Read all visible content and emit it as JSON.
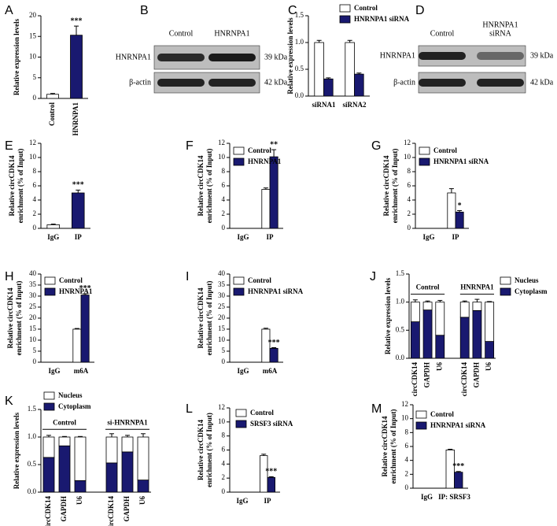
{
  "chart_data": [
    {
      "type": "bar",
      "label": "A",
      "ylabel": [
        "Relative expression levels"
      ],
      "categories": [
        "Control",
        "HNRNPA1"
      ],
      "values": [
        1,
        15.3
      ],
      "errors": [
        0.2,
        2.2
      ],
      "colors": [
        "#ffffff",
        "#191970"
      ],
      "significance": [
        null,
        "***"
      ],
      "ylim": [
        0,
        20
      ],
      "yticks": [
        0,
        5,
        10,
        15,
        20
      ]
    },
    {
      "type": "bar",
      "label": "C",
      "ylabel": [
        "Relative expression levels"
      ],
      "categories": [
        "siRNA1",
        "siRNA2"
      ],
      "series": [
        {
          "name": "Control",
          "color": "#ffffff",
          "values": [
            1.0,
            1.0
          ],
          "errors": [
            0.04,
            0.04
          ]
        },
        {
          "name": "HNRNPA1 siRNA",
          "color": "#191970",
          "values": [
            0.32,
            0.41
          ],
          "errors": [
            0.02,
            0.02
          ]
        }
      ],
      "ylim": [
        0,
        1.5
      ],
      "yticks": [
        {
          "value": 0,
          "label": "0.0"
        },
        {
          "value": 0.5,
          "label": "0.5"
        },
        {
          "value": 1,
          "label": "1.0"
        },
        {
          "value": 1.5,
          "label": "1.5"
        }
      ]
    },
    {
      "type": "bar",
      "label": "E",
      "ylabel": [
        "Relative  circCDK14",
        "enrichment (% of Input)"
      ],
      "categories": [
        "IgG",
        "IP"
      ],
      "values": [
        0.5,
        5.0
      ],
      "errors": [
        0.1,
        0.4
      ],
      "colors": [
        "#ffffff",
        "#191970"
      ],
      "significance": [
        null,
        "***"
      ],
      "ylim": [
        0,
        12
      ],
      "yticks": [
        0,
        2,
        4,
        6,
        8,
        10,
        12
      ]
    },
    {
      "type": "bar",
      "label": "F",
      "ylabel": [
        "Relative  circCDK14",
        "enrichment (% of Input)"
      ],
      "categories": [
        "IgG",
        "IP"
      ],
      "series": [
        {
          "name": "Control",
          "color": "#ffffff",
          "values": [
            0,
            5.5
          ],
          "errors": [
            0,
            0.2
          ]
        },
        {
          "name": "HNRNPA1",
          "color": "#191970",
          "values": [
            0,
            10.1
          ],
          "errors": [
            0,
            1.0
          ]
        }
      ],
      "significance": [
        null,
        "**"
      ],
      "ylim": [
        0,
        12
      ],
      "yticks": [
        0,
        2,
        4,
        6,
        8,
        10,
        12
      ]
    },
    {
      "type": "bar",
      "label": "G",
      "ylabel": [
        "Relative  circCDK14",
        "enrichment (% of Input)"
      ],
      "categories": [
        "IgG",
        "IP"
      ],
      "series": [
        {
          "name": "Control",
          "color": "#ffffff",
          "values": [
            0,
            5.0
          ],
          "errors": [
            0,
            0.6
          ]
        },
        {
          "name": "HNRNPA1 siRNA",
          "color": "#191970",
          "values": [
            0,
            2.3
          ],
          "errors": [
            0,
            0.2
          ]
        }
      ],
      "significance": [
        null,
        "*"
      ],
      "ylim": [
        0,
        12
      ],
      "yticks": [
        0,
        2,
        4,
        6,
        8,
        10,
        12
      ]
    },
    {
      "type": "bar",
      "label": "H",
      "ylabel": [
        "Relative  circCDK14",
        "enrichment (% of Input)"
      ],
      "categories": [
        "IgG",
        "m6A"
      ],
      "series": [
        {
          "name": "Control",
          "color": "#ffffff",
          "values": [
            0,
            15
          ],
          "errors": [
            0,
            0.3
          ]
        },
        {
          "name": "HNRNPA1",
          "color": "#191970",
          "values": [
            0,
            30.5
          ],
          "errors": [
            0,
            0.6
          ]
        }
      ],
      "significance": [
        null,
        "***"
      ],
      "ylim": [
        0,
        40
      ],
      "yticks": [
        0,
        5,
        10,
        15,
        20,
        25,
        30,
        35,
        40
      ]
    },
    {
      "type": "bar",
      "label": "I",
      "ylabel": [
        "Relative  circCDK14",
        "enrichment (% of Input)"
      ],
      "categories": [
        "IgG",
        "m6A"
      ],
      "series": [
        {
          "name": "Control",
          "color": "#ffffff",
          "values": [
            0,
            15
          ],
          "errors": [
            0,
            0.4
          ]
        },
        {
          "name": "HNRNPA1 siRNA",
          "color": "#191970",
          "values": [
            0,
            6.3
          ],
          "errors": [
            0,
            0.3
          ]
        }
      ],
      "significance": [
        null,
        "***"
      ],
      "ylim": [
        0,
        40
      ],
      "yticks": [
        0,
        5,
        10,
        15,
        20,
        25,
        30,
        35,
        40
      ]
    },
    {
      "type": "stacked_bar",
      "label": "J",
      "ylabel": [
        "Relative expression levels"
      ],
      "groups": [
        "Control",
        "HNRNPA1"
      ],
      "categories": [
        "circCDK14",
        "GAPDH",
        "U6",
        "circCDK14",
        "GAPDH",
        "U6"
      ],
      "series": [
        {
          "name": "Nucleus",
          "color": "#ffffff",
          "values": [
            0.35,
            0.14,
            0.59,
            0.27,
            0.15,
            0.7
          ],
          "errors": [
            0.04,
            0.02,
            0.03,
            0.02,
            0.05,
            0.01
          ]
        },
        {
          "name": "Cytoplasm",
          "color": "#191970",
          "values": [
            0.65,
            0.86,
            0.41,
            0.73,
            0.85,
            0.3
          ],
          "errors": [
            0.03,
            0.01,
            0.03,
            0.02,
            0.03,
            0.01
          ]
        }
      ],
      "ylim": [
        0,
        1.5
      ],
      "yticks": [
        {
          "value": 0,
          "label": "0.0"
        },
        {
          "value": 0.5,
          "label": "0.5"
        },
        {
          "value": 1,
          "label": "1.0"
        },
        {
          "value": 1.5,
          "label": "1.5"
        }
      ]
    },
    {
      "type": "stacked_bar",
      "label": "K",
      "ylabel": [
        "Relative expression levels"
      ],
      "groups": [
        "Control",
        "si-HNRNPA1"
      ],
      "categories": [
        "circCDK14",
        "GAPDH",
        "U6",
        "circCDK14",
        "GAPDH",
        "U6"
      ],
      "series": [
        {
          "name": "Nucleus",
          "color": "#ffffff",
          "values": [
            0.37,
            0.16,
            0.79,
            0.47,
            0.27,
            0.78
          ],
          "errors": [
            0.03,
            0.01,
            0.01,
            0.06,
            0.03,
            0.06
          ]
        },
        {
          "name": "Cytoplasm",
          "color": "#191970",
          "values": [
            0.63,
            0.84,
            0.21,
            0.53,
            0.73,
            0.22
          ],
          "errors": [
            0.02,
            0.01,
            0.01,
            0.07,
            0.02,
            0.06
          ]
        }
      ],
      "ylim": [
        0,
        1.5
      ],
      "yticks": [
        {
          "value": 0,
          "label": "0.0"
        },
        {
          "value": 0.5,
          "label": "0.5"
        },
        {
          "value": 1,
          "label": "1.0"
        },
        {
          "value": 1.5,
          "label": "1.5"
        }
      ]
    },
    {
      "type": "bar",
      "label": "L",
      "ylabel": [
        "Relative  circCDK14",
        "enrichment (% of Input)"
      ],
      "categories": [
        "IgG",
        "IP"
      ],
      "series": [
        {
          "name": "Control",
          "color": "#ffffff",
          "values": [
            0,
            5.2
          ],
          "errors": [
            0,
            0.2
          ]
        },
        {
          "name": "SRSF3 siRNA",
          "color": "#191970",
          "values": [
            0,
            2.1
          ],
          "errors": [
            0,
            0.1
          ]
        }
      ],
      "significance": [
        null,
        "***"
      ],
      "ylim": [
        0,
        12
      ],
      "yticks": [
        0,
        2,
        4,
        6,
        8,
        10,
        12
      ]
    },
    {
      "type": "bar",
      "label": "M",
      "ylabel": [
        "Relative  circCDK14",
        "enrichment (% of Input)"
      ],
      "categories": [
        "IgG",
        "IP: SRSF3"
      ],
      "series": [
        {
          "name": "Control",
          "color": "#ffffff",
          "values": [
            0,
            5.5
          ],
          "errors": [
            0,
            0.1
          ]
        },
        {
          "name": "HNRNPA1 siRNA",
          "color": "#191970",
          "values": [
            0,
            2.3
          ],
          "errors": [
            0,
            0.1
          ]
        }
      ],
      "significance": [
        null,
        "***"
      ],
      "ylim": [
        0,
        12
      ],
      "yticks": [
        0,
        2,
        4,
        6,
        8,
        10,
        12
      ]
    }
  ],
  "blots": [
    {
      "label": "B",
      "lanes": [
        [
          "Control"
        ],
        [
          "HNRNPA1"
        ]
      ],
      "rows": [
        {
          "name": "HNRNPA1",
          "size": "39 kDa"
        },
        {
          "name": "β-actin",
          "size": "42 kDa"
        }
      ]
    },
    {
      "label": "D",
      "lanes": [
        [
          "Control"
        ],
        [
          "HNRNPA1",
          "siRNA"
        ]
      ],
      "rows": [
        {
          "name": "HNRNPA1",
          "size": "39 kDa"
        },
        {
          "name": "β-actin",
          "size": "42 kDa"
        }
      ]
    }
  ]
}
